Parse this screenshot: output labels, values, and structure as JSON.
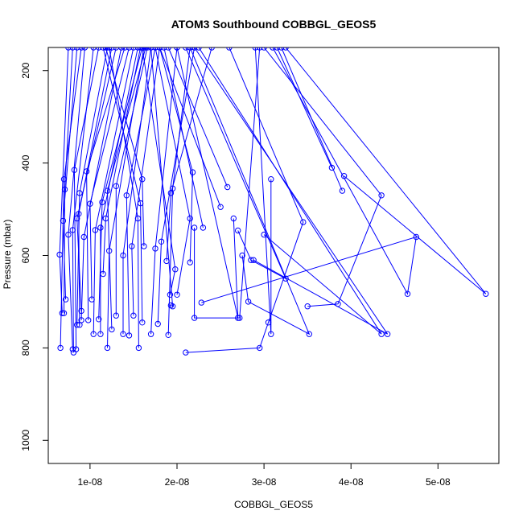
{
  "chart_data": {
    "type": "scatter",
    "title": "ATOM3 Southbound COBBGL_GEOS5",
    "xlabel": "COBBGL_GEOS5",
    "ylabel": "Pressure (mbar)",
    "xlim": [
      5.2e-09,
      5.7e-08
    ],
    "ylim": [
      1050,
      150
    ],
    "y_reversed": true,
    "grid": false,
    "series_color": "#0000ff",
    "x_ticks": [
      {
        "value": 1e-08,
        "label": "1e-08"
      },
      {
        "value": 2e-08,
        "label": "2e-08"
      },
      {
        "value": 3e-08,
        "label": "3e-08"
      },
      {
        "value": 4e-08,
        "label": "4e-08"
      },
      {
        "value": 5e-08,
        "label": "5e-08"
      }
    ],
    "y_ticks": [
      {
        "value": 200,
        "label": "200"
      },
      {
        "value": 400,
        "label": "400"
      },
      {
        "value": 600,
        "label": "600"
      },
      {
        "value": 800,
        "label": "800"
      },
      {
        "value": 1000,
        "label": "1000"
      }
    ],
    "profiles": [
      [
        [
          6.6e-09,
          800
        ],
        [
          7e-09,
          435
        ],
        [
          9e-09,
          150
        ]
      ],
      [
        [
          6.8e-09,
          725
        ],
        [
          6.5e-09,
          598
        ],
        [
          7.5e-09,
          150
        ]
      ],
      [
        [
          7e-09,
          725
        ],
        [
          7.1e-09,
          457
        ],
        [
          8e-09,
          150
        ]
      ],
      [
        [
          7.2e-09,
          695
        ],
        [
          6.9e-09,
          525
        ],
        [
          8.5e-09,
          150
        ]
      ],
      [
        [
          8e-09,
          803
        ],
        [
          7.5e-09,
          555
        ],
        [
          9.4e-09,
          150
        ]
      ],
      [
        [
          8.1e-09,
          810
        ],
        [
          8e-09,
          545
        ],
        [
          1.04e-08,
          150
        ]
      ],
      [
        [
          8.4e-09,
          803
        ],
        [
          8.2e-09,
          415
        ],
        [
          1.1e-08,
          150
        ]
      ],
      [
        [
          8.5e-09,
          750
        ],
        [
          8.8e-09,
          465
        ],
        [
          1.2e-08,
          150
        ]
      ],
      [
        [
          8.8e-09,
          750
        ],
        [
          8.7e-09,
          510
        ],
        [
          1.25e-08,
          150
        ]
      ],
      [
        [
          9e-09,
          720
        ],
        [
          8.5e-09,
          520
        ],
        [
          1.3e-08,
          150
        ]
      ],
      [
        [
          9e-09,
          740
        ],
        [
          9.3e-09,
          560
        ],
        [
          1.36e-08,
          150
        ]
      ],
      [
        [
          9.8e-09,
          740
        ],
        [
          9.6e-09,
          418
        ],
        [
          1.4e-08,
          150
        ]
      ],
      [
        [
          1.02e-08,
          695
        ],
        [
          1e-08,
          488
        ],
        [
          1.45e-08,
          150
        ]
      ],
      [
        [
          1.04e-08,
          770
        ],
        [
          1.06e-08,
          545
        ],
        [
          1.5e-08,
          150
        ]
      ],
      [
        [
          1.12e-08,
          770
        ],
        [
          1.12e-08,
          540
        ],
        [
          1.55e-08,
          150
        ]
      ],
      [
        [
          1.15e-08,
          640
        ],
        [
          1.18e-08,
          520
        ],
        [
          1.58e-08,
          150
        ]
      ],
      [
        [
          1.1e-08,
          738
        ],
        [
          1.14e-08,
          485
        ],
        [
          1.6e-08,
          150
        ]
      ],
      [
        [
          1.2e-08,
          800
        ],
        [
          1.22e-08,
          590
        ],
        [
          1.62e-08,
          150
        ]
      ],
      [
        [
          1.25e-08,
          760
        ],
        [
          1.2e-08,
          460
        ],
        [
          1.64e-08,
          150
        ]
      ],
      [
        [
          1.3e-08,
          730
        ],
        [
          1.3e-08,
          450
        ],
        [
          1.66e-08,
          150
        ]
      ],
      [
        [
          1.38e-08,
          770
        ],
        [
          1.38e-08,
          600
        ],
        [
          1.7e-08,
          150
        ]
      ],
      [
        [
          1.45e-08,
          773
        ],
        [
          1.42e-08,
          470
        ],
        [
          1.75e-08,
          150
        ]
      ],
      [
        [
          1.5e-08,
          730
        ],
        [
          1.48e-08,
          580
        ],
        [
          1.8e-08,
          150
        ]
      ],
      [
        [
          1.56e-08,
          800
        ],
        [
          1.55e-08,
          520
        ],
        [
          1.22e-08,
          150
        ]
      ],
      [
        [
          1.6e-08,
          745
        ],
        [
          1.58e-08,
          487
        ],
        [
          1.15e-08,
          150
        ]
      ],
      [
        [
          1.62e-08,
          580
        ],
        [
          1.6e-08,
          435
        ],
        [
          1.18e-08,
          150
        ]
      ],
      [
        [
          1.7e-08,
          770
        ],
        [
          1.75e-08,
          585
        ],
        [
          2e-08,
          150
        ]
      ],
      [
        [
          1.78e-08,
          748
        ],
        [
          1.82e-08,
          570
        ],
        [
          2.2e-08,
          150
        ]
      ],
      [
        [
          1.88e-08,
          612
        ],
        [
          1.93e-08,
          465
        ],
        [
          2.4e-08,
          150
        ]
      ],
      [
        [
          1.9e-08,
          772
        ],
        [
          1.95e-08,
          455
        ],
        [
          2.15e-08,
          150
        ]
      ],
      [
        [
          1.92e-08,
          685
        ],
        [
          1.98e-08,
          630
        ],
        [
          1.6e-08,
          150
        ]
      ],
      [
        [
          1.93e-08,
          708
        ],
        [
          1.95e-08,
          710
        ],
        [
          1.7e-08,
          150
        ]
      ],
      [
        [
          2e-08,
          685
        ],
        [
          2.15e-08,
          520
        ],
        [
          1.75e-08,
          150
        ]
      ],
      [
        [
          2.1e-08,
          810
        ],
        [
          2.95e-08,
          800
        ],
        [
          3.05e-08,
          745
        ],
        [
          3.45e-08,
          528
        ],
        [
          2.6e-08,
          150
        ]
      ],
      [
        [
          2.15e-08,
          615
        ],
        [
          2.18e-08,
          420
        ],
        [
          1.8e-08,
          150
        ]
      ],
      [
        [
          2.2e-08,
          540
        ],
        [
          2.2e-08,
          735
        ],
        [
          2.72e-08,
          735
        ],
        [
          2.95e-08,
          150
        ]
      ],
      [
        [
          2.28e-08,
          702
        ],
        [
          4.75e-08,
          560
        ],
        [
          4.65e-08,
          683
        ],
        [
          3.1e-08,
          150
        ]
      ],
      [
        [
          2.3e-08,
          540
        ],
        [
          1.85e-08,
          150
        ]
      ],
      [
        [
          2.5e-08,
          495
        ],
        [
          1.8e-08,
          150
        ]
      ],
      [
        [
          2.58e-08,
          452
        ],
        [
          1.9e-08,
          150
        ]
      ],
      [
        [
          2.65e-08,
          520
        ],
        [
          2.7e-08,
          735
        ],
        [
          2e-08,
          150
        ]
      ],
      [
        [
          2.7e-08,
          546
        ],
        [
          2.85e-08,
          610
        ],
        [
          3.25e-08,
          650
        ],
        [
          2.1e-08,
          150
        ]
      ],
      [
        [
          2.75e-08,
          600
        ],
        [
          2.82e-08,
          700
        ],
        [
          3.52e-08,
          770
        ],
        [
          2.15e-08,
          150
        ]
      ],
      [
        [
          2.88e-08,
          610
        ],
        [
          4.42e-08,
          770
        ],
        [
          2.2e-08,
          150
        ]
      ],
      [
        [
          3e-08,
          555
        ],
        [
          4.35e-08,
          770
        ],
        [
          2.25e-08,
          150
        ]
      ],
      [
        [
          3.08e-08,
          435
        ],
        [
          3.08e-08,
          770
        ],
        [
          2.9e-08,
          150
        ]
      ],
      [
        [
          3.5e-08,
          710
        ],
        [
          3.85e-08,
          705
        ],
        [
          4.35e-08,
          470
        ],
        [
          3e-08,
          150
        ]
      ],
      [
        [
          3.78e-08,
          410
        ],
        [
          3.15e-08,
          150
        ]
      ],
      [
        [
          3.9e-08,
          460
        ],
        [
          3.2e-08,
          150
        ]
      ],
      [
        [
          3.92e-08,
          428
        ],
        [
          5.55e-08,
          683
        ],
        [
          3.25e-08,
          150
        ]
      ]
    ]
  }
}
